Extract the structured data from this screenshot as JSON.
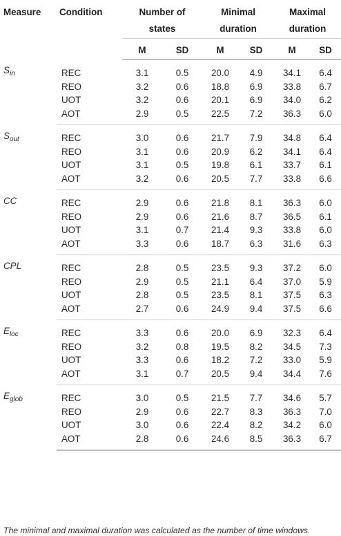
{
  "header": {
    "measure": "Measure",
    "condition": "Condition",
    "group1_line1": "Number of",
    "group1_line2": "states",
    "group2_line1": "Minimal",
    "group2_line2": "duration",
    "group3_line1": "Maximal",
    "group3_line2": "duration",
    "m": "M",
    "sd": "SD"
  },
  "blocks": [
    {
      "measure_base": "S",
      "measure_sub": "in",
      "rows": [
        {
          "cond": "REC",
          "v": [
            "3.1",
            "0.5",
            "20.0",
            "4.9",
            "34.1",
            "6.4"
          ]
        },
        {
          "cond": "REO",
          "v": [
            "3.2",
            "0.6",
            "18.8",
            "6.9",
            "33.8",
            "6.7"
          ]
        },
        {
          "cond": "UOT",
          "v": [
            "3.2",
            "0.6",
            "20.1",
            "6.9",
            "34.0",
            "6.2"
          ]
        },
        {
          "cond": "AOT",
          "v": [
            "2.9",
            "0.5",
            "22.5",
            "7.2",
            "36.3",
            "6.0"
          ]
        }
      ]
    },
    {
      "measure_base": "S",
      "measure_sub": "out",
      "rows": [
        {
          "cond": "REC",
          "v": [
            "3.0",
            "0.6",
            "21.7",
            "7.9",
            "34.8",
            "6.4"
          ]
        },
        {
          "cond": "REO",
          "v": [
            "3.1",
            "0.6",
            "20.9",
            "6.2",
            "34.1",
            "6.4"
          ]
        },
        {
          "cond": "UOT",
          "v": [
            "3.1",
            "0.5",
            "19.8",
            "6.1",
            "33.7",
            "6.1"
          ]
        },
        {
          "cond": "AOT",
          "v": [
            "3.2",
            "0.6",
            "20.5",
            "7.7",
            "33.8",
            "6.6"
          ]
        }
      ]
    },
    {
      "measure_base": "CC",
      "measure_sub": "",
      "rows": [
        {
          "cond": "REC",
          "v": [
            "2.9",
            "0.6",
            "21.8",
            "8.1",
            "36.3",
            "6.0"
          ]
        },
        {
          "cond": "REO",
          "v": [
            "2.9",
            "0.6",
            "21.6",
            "8.7",
            "36.5",
            "6.1"
          ]
        },
        {
          "cond": "UOT",
          "v": [
            "3.1",
            "0.7",
            "21.4",
            "9.3",
            "33.8",
            "6.0"
          ]
        },
        {
          "cond": "AOT",
          "v": [
            "3.3",
            "0.6",
            "18.7",
            "6.3",
            "31.6",
            "6.3"
          ]
        }
      ]
    },
    {
      "measure_base": "CPL",
      "measure_sub": "",
      "rows": [
        {
          "cond": "REC",
          "v": [
            "2.8",
            "0.5",
            "23.5",
            "9.3",
            "37.2",
            "6.0"
          ]
        },
        {
          "cond": "REO",
          "v": [
            "2.9",
            "0.5",
            "21.1",
            "6.4",
            "37.0",
            "5.9"
          ]
        },
        {
          "cond": "UOT",
          "v": [
            "2.8",
            "0.5",
            "23.5",
            "8.1",
            "37.5",
            "6.3"
          ]
        },
        {
          "cond": "AOT",
          "v": [
            "2.7",
            "0.6",
            "24.9",
            "9.4",
            "37.5",
            "6.6"
          ]
        }
      ]
    },
    {
      "measure_base": "E",
      "measure_sub": "loc",
      "rows": [
        {
          "cond": "REC",
          "v": [
            "3.3",
            "0.6",
            "20.0",
            "6.9",
            "32.3",
            "6.4"
          ]
        },
        {
          "cond": "REO",
          "v": [
            "3.2",
            "0.8",
            "19.5",
            "8.2",
            "34.5",
            "7.3"
          ]
        },
        {
          "cond": "UOT",
          "v": [
            "3.3",
            "0.6",
            "18.2",
            "7.2",
            "33.0",
            "5.9"
          ]
        },
        {
          "cond": "AOT",
          "v": [
            "3.1",
            "0.7",
            "20.5",
            "9.4",
            "34.4",
            "7.6"
          ]
        }
      ]
    },
    {
      "measure_base": "E",
      "measure_sub": "glob",
      "rows": [
        {
          "cond": "REC",
          "v": [
            "3.0",
            "0.5",
            "21.5",
            "7.7",
            "34.6",
            "5.7"
          ]
        },
        {
          "cond": "REO",
          "v": [
            "2.9",
            "0.6",
            "22.7",
            "8.3",
            "36.3",
            "7.0"
          ]
        },
        {
          "cond": "UOT",
          "v": [
            "3.0",
            "0.6",
            "22.4",
            "8.2",
            "34.2",
            "6.0"
          ]
        },
        {
          "cond": "AOT",
          "v": [
            "2.8",
            "0.6",
            "24.6",
            "8.5",
            "36.3",
            "6.7"
          ]
        }
      ]
    }
  ],
  "footnote": "The minimal and maximal duration was calculated as the number of time windows."
}
